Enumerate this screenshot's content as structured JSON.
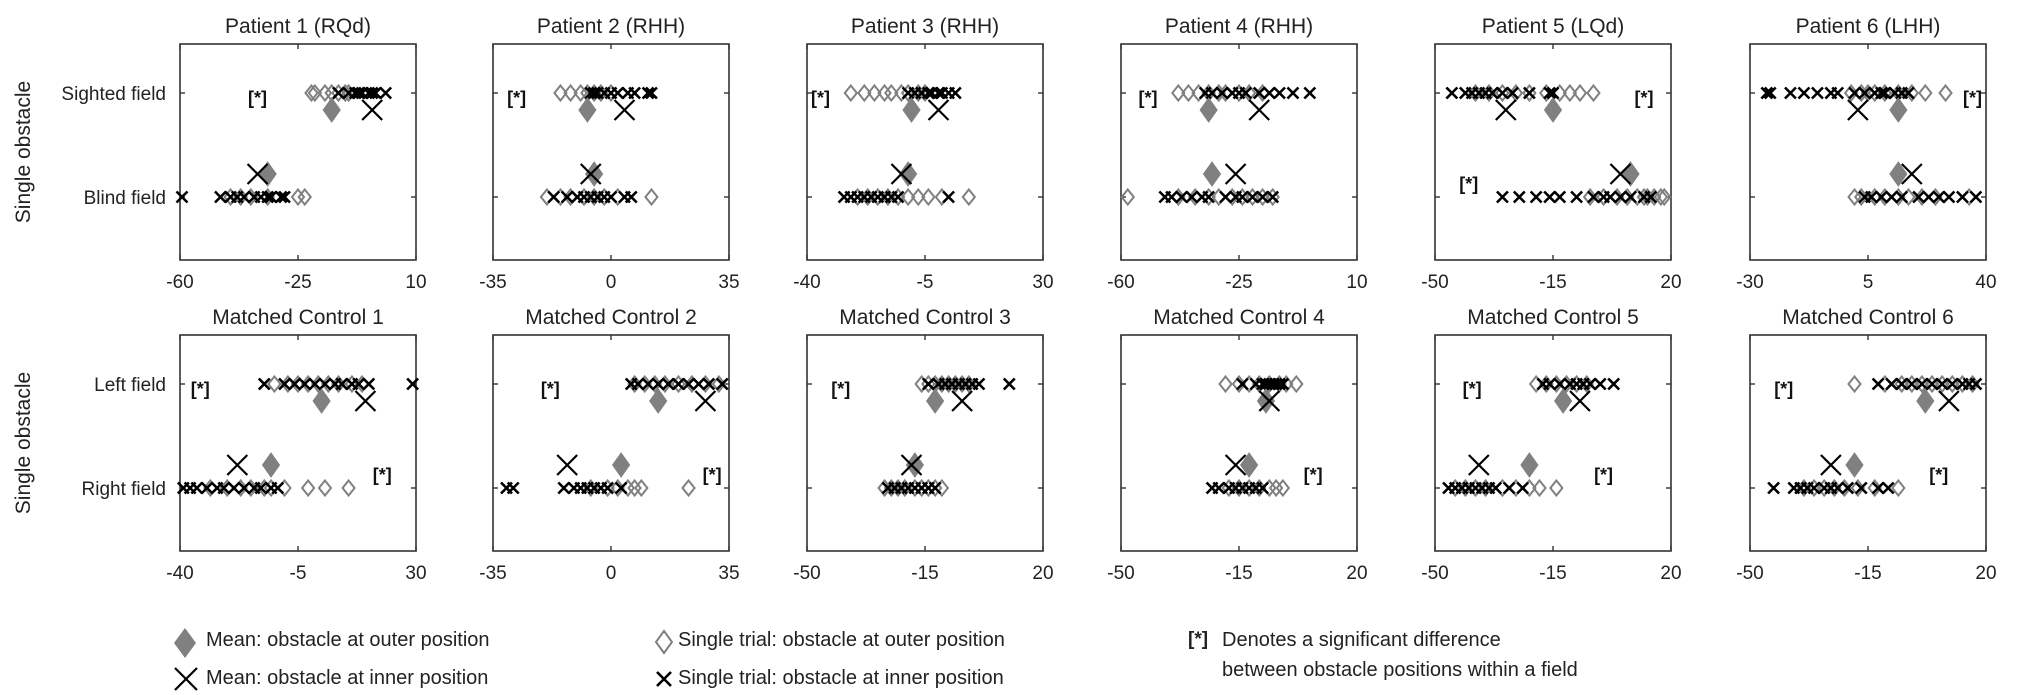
{
  "chart_data": {
    "type": "scatter",
    "row_ylabel": "Single obstacle",
    "significance_marker": "[*]",
    "series_styles": {
      "mean_outer": {
        "marker": "filled-diamond",
        "color": "#808080"
      },
      "mean_inner": {
        "marker": "large-x",
        "color": "#000000"
      },
      "trial_outer": {
        "marker": "open-diamond",
        "color": "#808080"
      },
      "trial_inner": {
        "marker": "small-x",
        "color": "#000000"
      }
    },
    "panels": [
      {
        "row": 0,
        "col": 0,
        "title": "Patient 1 (RQd)",
        "xlim": [
          -60,
          10
        ],
        "xticks": [
          "-60",
          "-25",
          "10"
        ],
        "ylabels": [
          "Sighted field",
          "Blind field"
        ],
        "rows": [
          {
            "mean_outer": -15,
            "mean_inner": -3,
            "trial_outer": [
              -21,
              -20,
              -17,
              -15,
              -13,
              -11,
              -10
            ],
            "trial_inner": [
              -13,
              -10,
              -8,
              -7,
              -6,
              -4,
              -3,
              -2,
              1
            ],
            "sig": true,
            "sig_x": -37
          },
          {
            "mean_outer": -34,
            "mean_inner": -37,
            "trial_outer": [
              -45,
              -42,
              -39,
              -34,
              -25,
              -23
            ],
            "trial_inner": [
              -60,
              -48,
              -45,
              -43,
              -41,
              -38,
              -36,
              -34,
              -33,
              -30,
              -29
            ],
            "sig": false
          }
        ]
      },
      {
        "row": 0,
        "col": 1,
        "title": "Patient 2 (RHH)",
        "xlim": [
          -35,
          35
        ],
        "xticks": [
          "-35",
          "0",
          "35"
        ],
        "ylabels": [
          "Sighted field",
          "Blind field"
        ],
        "rows": [
          {
            "mean_outer": -7,
            "mean_inner": 4,
            "trial_outer": [
              -15,
              -12,
              -9,
              -7,
              -5,
              -3,
              0
            ],
            "trial_inner": [
              -6,
              -5,
              -4,
              -2,
              0,
              2,
              5,
              7,
              11,
              12
            ],
            "sig": true,
            "sig_x": -28
          },
          {
            "mean_outer": -5,
            "mean_inner": -6,
            "trial_outer": [
              -19,
              -15,
              -12,
              -8,
              -5,
              -2,
              2,
              12
            ],
            "trial_inner": [
              -17,
              -13,
              -10,
              -8,
              -6,
              -4,
              -2,
              0,
              4,
              6
            ],
            "sig": false
          }
        ]
      },
      {
        "row": 0,
        "col": 2,
        "title": "Patient 3 (RHH)",
        "xlim": [
          -40,
          30
        ],
        "xticks": [
          "-40",
          "-5",
          "30"
        ],
        "ylabels": [
          "Sighted field",
          "Blind field"
        ],
        "rows": [
          {
            "mean_outer": -9,
            "mean_inner": -1,
            "trial_outer": [
              -27,
              -23,
              -20,
              -17,
              -15,
              -12,
              -10,
              -7,
              -5
            ],
            "trial_inner": [
              -10,
              -8,
              -6,
              -4,
              -3,
              -1,
              0,
              2,
              4
            ],
            "sig": true,
            "sig_x": -36
          },
          {
            "mean_outer": -10,
            "mean_inner": -12,
            "trial_outer": [
              -25,
              -22,
              -19,
              -16,
              -13,
              -10,
              -7,
              -4,
              0,
              8
            ],
            "trial_inner": [
              -29,
              -27,
              -25,
              -23,
              -21,
              -19,
              -17,
              -15,
              -13,
              2
            ],
            "sig": false
          }
        ]
      },
      {
        "row": 0,
        "col": 3,
        "title": "Patient 4 (RHH)",
        "xlim": [
          -60,
          10
        ],
        "xticks": [
          "-60",
          "-25",
          "10"
        ],
        "ylabels": [
          "Sighted field",
          "Blind field"
        ],
        "rows": [
          {
            "mean_outer": -34,
            "mean_inner": -19,
            "trial_outer": [
              -43,
              -40,
              -37,
              -34,
              -31,
              -29,
              -25,
              -22,
              -18
            ],
            "trial_inner": [
              -35,
              -33,
              -30,
              -27,
              -25,
              -23,
              -19,
              -16,
              -13,
              -9,
              -4
            ],
            "sig": true,
            "sig_x": -52
          },
          {
            "mean_outer": -33,
            "mean_inner": -26,
            "trial_outer": [
              -58,
              -43,
              -38,
              -34,
              -31,
              -27,
              -24,
              -21,
              -18,
              -15
            ],
            "trial_inner": [
              -47,
              -45,
              -42,
              -39,
              -36,
              -34,
              -29,
              -26,
              -24,
              -21,
              -18,
              -15
            ],
            "sig": false
          }
        ]
      },
      {
        "row": 0,
        "col": 4,
        "title": "Patient 5 (LQd)",
        "xlim": [
          -50,
          20
        ],
        "xticks": [
          "-50",
          "-15",
          "20"
        ],
        "ylabels": [
          "Sighted field",
          "Blind field"
        ],
        "rows": [
          {
            "mean_outer": -15,
            "mean_inner": -29,
            "trial_outer": [
              -38,
              -34,
              -30,
              -26,
              -22,
              -17,
              -13,
              -10,
              -7,
              -3
            ],
            "trial_inner": [
              -45,
              -41,
              -39,
              -37,
              -35,
              -33,
              -30,
              -27,
              -22,
              -16,
              -15
            ],
            "sig": true,
            "sig_x": 12
          },
          {
            "mean_outer": 8,
            "mean_inner": 5,
            "trial_outer": [
              -4,
              0,
              4,
              7,
              10,
              12,
              13,
              15,
              17,
              18
            ],
            "trial_inner": [
              -30,
              -25,
              -20,
              -16,
              -13,
              -8,
              -3,
              0,
              2,
              5,
              8,
              12,
              14
            ],
            "sig": true,
            "sig_x": -40
          }
        ]
      },
      {
        "row": 0,
        "col": 5,
        "title": "Patient 6 (LHH)",
        "xlim": [
          -30,
          40
        ],
        "xticks": [
          "-30",
          "5",
          "40"
        ],
        "ylabels": [
          "Sighted field",
          "Blind field"
        ],
        "rows": [
          {
            "mean_outer": 14,
            "mean_inner": 2,
            "trial_outer": [
              0,
              3,
              5,
              7,
              10,
              14,
              18,
              22,
              28
            ],
            "trial_inner": [
              -25,
              -24,
              -18,
              -14,
              -10,
              -6,
              -4,
              1,
              4,
              7,
              9,
              10,
              13,
              15,
              17
            ],
            "sig": true,
            "sig_x": 36
          },
          {
            "mean_outer": 14,
            "mean_inner": 18,
            "trial_outer": [
              1,
              3,
              7,
              10,
              14,
              17,
              21,
              25,
              35
            ],
            "trial_inner": [
              4,
              6,
              9,
              12,
              15,
              20,
              23,
              26,
              29,
              33,
              37
            ],
            "sig": false
          }
        ]
      },
      {
        "row": 1,
        "col": 0,
        "title": "Matched Control 1",
        "xlim": [
          -40,
          30
        ],
        "xticks": [
          "-40",
          "-5",
          "30"
        ],
        "ylabels": [
          "Left field",
          "Right field"
        ],
        "rows": [
          {
            "mean_outer": 2,
            "mean_inner": 15,
            "trial_outer": [
              -12,
              -8,
              -5,
              -2,
              1,
              4,
              7,
              11,
              14
            ],
            "trial_inner": [
              -15,
              -9,
              -6,
              -3,
              0,
              3,
              6,
              8,
              11,
              13,
              16,
              29
            ],
            "sig": true,
            "sig_x": -34
          },
          {
            "mean_outer": -13,
            "mean_inner": -23,
            "trial_outer": [
              -31,
              -26,
              -22,
              -19,
              -15,
              -13,
              -9,
              -2,
              3,
              10
            ],
            "trial_inner": [
              -39,
              -37,
              -35,
              -32,
              -29,
              -27,
              -24,
              -21,
              -18,
              -16,
              -13,
              -11
            ],
            "sig": true,
            "sig_x": 20
          }
        ]
      },
      {
        "row": 1,
        "col": 1,
        "title": "Matched Control 2",
        "xlim": [
          -35,
          35
        ],
        "xticks": [
          "-35",
          "0",
          "35"
        ],
        "ylabels": [
          "Left field",
          "Right field"
        ],
        "rows": [
          {
            "mean_outer": 14,
            "mean_inner": 28,
            "trial_outer": [
              7,
              10,
              13,
              16,
              20,
              24,
              28,
              32
            ],
            "trial_inner": [
              6,
              8,
              11,
              14,
              17,
              20,
              23,
              26,
              29,
              33
            ],
            "sig": true,
            "sig_x": -18
          },
          {
            "mean_outer": 3,
            "mean_inner": -13,
            "trial_outer": [
              -6,
              -1,
              2,
              5,
              7,
              9,
              23
            ],
            "trial_inner": [
              -31,
              -29,
              -14,
              -11,
              -9,
              -7,
              -5,
              -3,
              -1,
              3
            ],
            "sig": true,
            "sig_x": 30
          }
        ]
      },
      {
        "row": 1,
        "col": 2,
        "title": "Matched Control 3",
        "xlim": [
          -50,
          20
        ],
        "xticks": [
          "-50",
          "-15",
          "20"
        ],
        "ylabels": [
          "Left field",
          "Right field"
        ],
        "rows": [
          {
            "mean_outer": -12,
            "mean_inner": -4,
            "trial_outer": [
              -16,
              -14,
              -12,
              -10,
              -8,
              -6,
              -4,
              -2
            ],
            "trial_inner": [
              -14,
              -11,
              -9,
              -7,
              -5,
              -3,
              -1,
              1,
              10
            ],
            "sig": true,
            "sig_x": -40
          },
          {
            "mean_outer": -18,
            "mean_inner": -19,
            "trial_outer": [
              -27,
              -25,
              -23,
              -21,
              -18,
              -16,
              -14,
              -12,
              -10
            ],
            "trial_inner": [
              -26,
              -24,
              -22,
              -20,
              -18,
              -16,
              -14,
              -12
            ],
            "sig": false
          }
        ]
      },
      {
        "row": 1,
        "col": 3,
        "title": "Matched Control 4",
        "xlim": [
          -50,
          20
        ],
        "xticks": [
          "-50",
          "-15",
          "20"
        ],
        "ylabels": [
          "Left field",
          "Right field"
        ],
        "rows": [
          {
            "mean_outer": -7,
            "mean_inner": -6,
            "trial_outer": [
              -19,
              -15,
              -12,
              -9,
              -6,
              -3,
              -1,
              2
            ],
            "trial_inner": [
              -14,
              -10,
              -8,
              -7,
              -6,
              -5,
              -4,
              -3,
              -2
            ],
            "sig": false
          },
          {
            "mean_outer": -12,
            "mean_inner": -16,
            "trial_outer": [
              -18,
              -15,
              -12,
              -9,
              -6,
              -4,
              -2
            ],
            "trial_inner": [
              -23,
              -21,
              -18,
              -16,
              -14,
              -12,
              -10,
              -8
            ],
            "sig": true,
            "sig_x": 7
          }
        ]
      },
      {
        "row": 1,
        "col": 4,
        "title": "Matched Control 5",
        "xlim": [
          -50,
          20
        ],
        "xticks": [
          "-50",
          "-15",
          "20"
        ],
        "ylabels": [
          "Left field",
          "Right field"
        ],
        "rows": [
          {
            "mean_outer": -12,
            "mean_inner": -7,
            "trial_outer": [
              -20,
              -17,
              -14,
              -11,
              -8,
              -5
            ],
            "trial_inner": [
              -18,
              -16,
              -13,
              -10,
              -8,
              -6,
              -4,
              -1,
              3
            ],
            "sig": true,
            "sig_x": -39
          },
          {
            "mean_outer": -22,
            "mean_inner": -37,
            "trial_outer": [
              -44,
              -41,
              -38,
              -35,
              -30,
              -26,
              -22,
              -19,
              -14
            ],
            "trial_inner": [
              -46,
              -44,
              -42,
              -40,
              -38,
              -36,
              -34,
              -32,
              -28,
              -24
            ],
            "sig": true,
            "sig_x": 0
          }
        ]
      },
      {
        "row": 1,
        "col": 5,
        "title": "Matched Control 6",
        "xlim": [
          -50,
          20
        ],
        "xticks": [
          "-50",
          "-15",
          "20"
        ],
        "ylabels": [
          "Left field",
          "Right field"
        ],
        "rows": [
          {
            "mean_outer": 2,
            "mean_inner": 9,
            "trial_outer": [
              -19,
              -10,
              -5,
              -2,
              1,
              4,
              7,
              10,
              13,
              16
            ],
            "trial_inner": [
              -12,
              -8,
              -5,
              -2,
              1,
              4,
              7,
              10,
              13,
              15,
              17
            ],
            "sig": true,
            "sig_x": -40
          },
          {
            "mean_outer": -19,
            "mean_inner": -26,
            "trial_outer": [
              -34,
              -31,
              -28,
              -25,
              -22,
              -18,
              -13,
              -6
            ],
            "trial_inner": [
              -43,
              -37,
              -35,
              -33,
              -31,
              -28,
              -26,
              -24,
              -21,
              -17,
              -12,
              -9
            ],
            "sig": true,
            "sig_x": 6
          }
        ]
      }
    ]
  },
  "legend": {
    "mean_outer": "Mean: obstacle at outer position",
    "mean_inner": "Mean: obstacle at inner position",
    "trial_outer": "Single trial: obstacle at outer position",
    "trial_inner": "Single trial: obstacle at inner position",
    "sig_marker": "[*]",
    "sig_line1": "Denotes a significant difference",
    "sig_line2": "between obstacle positions within a field"
  }
}
